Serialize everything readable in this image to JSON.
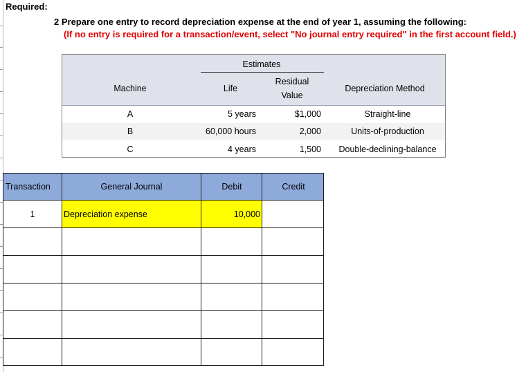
{
  "required_label": "Required:",
  "instruction": "2 Prepare one entry to record depreciation expense at the end of year 1, assuming the following:",
  "note": "(If no entry is required for a transaction/event, select \"No journal entry required\" in the first account field.)",
  "estimates": {
    "group_header": "Estimates",
    "headers": {
      "machine": "Machine",
      "life": "Life",
      "residual_line1": "Residual",
      "residual_line2": "Value",
      "method": "Depreciation Method"
    },
    "rows": [
      {
        "machine": "A",
        "life": "5 years",
        "residual": "$1,000",
        "method": "Straight-line"
      },
      {
        "machine": "B",
        "life": "60,000 hours",
        "residual": "2,000",
        "method": "Units-of-production"
      },
      {
        "machine": "C",
        "life": "4 years",
        "residual": "1,500",
        "method": "Double-declining-balance"
      }
    ]
  },
  "journal": {
    "headers": {
      "transaction": "Transaction",
      "general_journal": "General Journal",
      "debit": "Debit",
      "credit": "Credit"
    },
    "rows": [
      {
        "transaction": "1",
        "account": "Depreciation expense",
        "debit": "10,000",
        "credit": ""
      },
      {
        "transaction": "",
        "account": "",
        "debit": "",
        "credit": ""
      },
      {
        "transaction": "",
        "account": "",
        "debit": "",
        "credit": ""
      },
      {
        "transaction": "",
        "account": "",
        "debit": "",
        "credit": ""
      },
      {
        "transaction": "",
        "account": "",
        "debit": "",
        "credit": ""
      },
      {
        "transaction": "",
        "account": "",
        "debit": "",
        "credit": ""
      }
    ]
  },
  "colors": {
    "header_blue": "#8eaadb",
    "highlight_yellow": "#ffff00",
    "note_red": "#e00000",
    "estimates_header_gray": "#dfe2ea"
  }
}
